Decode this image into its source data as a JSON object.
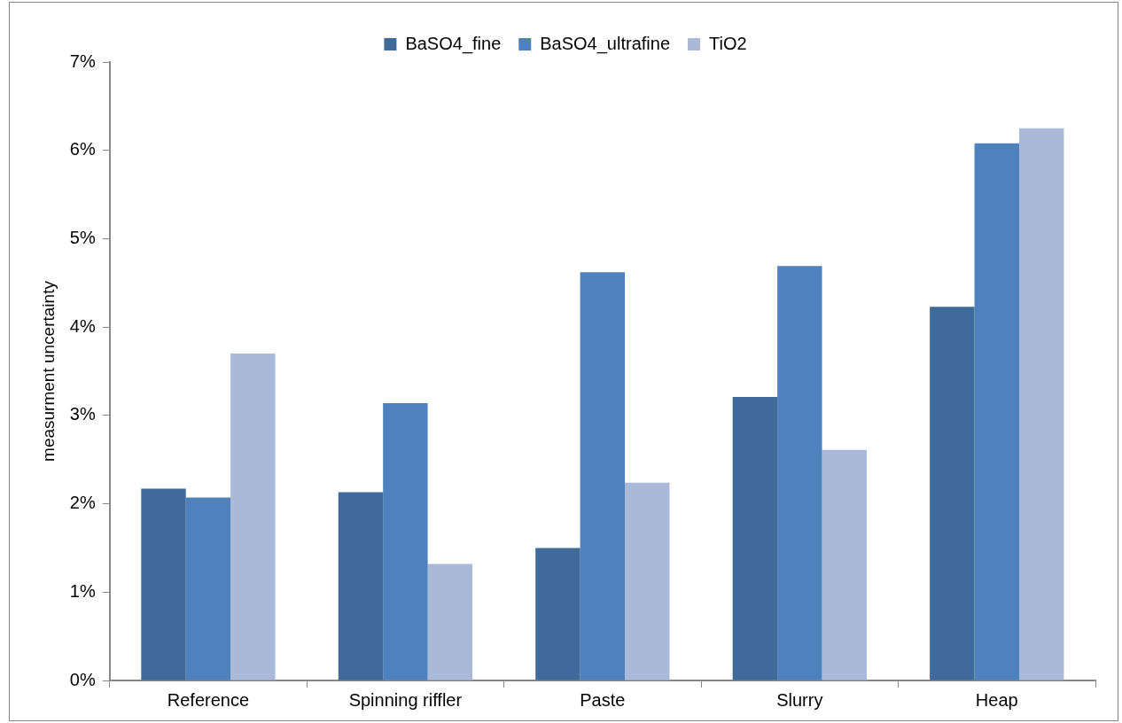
{
  "chart_data": {
    "type": "bar",
    "ylabel": "measurment uncertainty",
    "categories": [
      "Reference",
      "Spinning riffler",
      "Paste",
      "Slurry",
      "Heap"
    ],
    "series": [
      {
        "name": "BaSO4_fine",
        "color": "#3f6a9a",
        "values": [
          2.17,
          2.13,
          1.5,
          3.21,
          4.23
        ]
      },
      {
        "name": "BaSO4_ultrafine",
        "color": "#4f81bd",
        "values": [
          2.07,
          3.14,
          4.62,
          4.69,
          6.08
        ]
      },
      {
        "name": "TiO2",
        "color": "#aab9d7",
        "values": [
          3.7,
          1.32,
          2.24,
          2.61,
          6.25
        ]
      }
    ],
    "ylim": [
      0,
      7
    ],
    "yticks": [
      {
        "value": 0,
        "label": "0%"
      },
      {
        "value": 1,
        "label": "1%"
      },
      {
        "value": 2,
        "label": "2%"
      },
      {
        "value": 3,
        "label": "3%"
      },
      {
        "value": 4,
        "label": "4%"
      },
      {
        "value": 5,
        "label": "5%"
      },
      {
        "value": 6,
        "label": "6%"
      },
      {
        "value": 7,
        "label": "7%"
      }
    ],
    "grid": false,
    "legend": "top"
  }
}
